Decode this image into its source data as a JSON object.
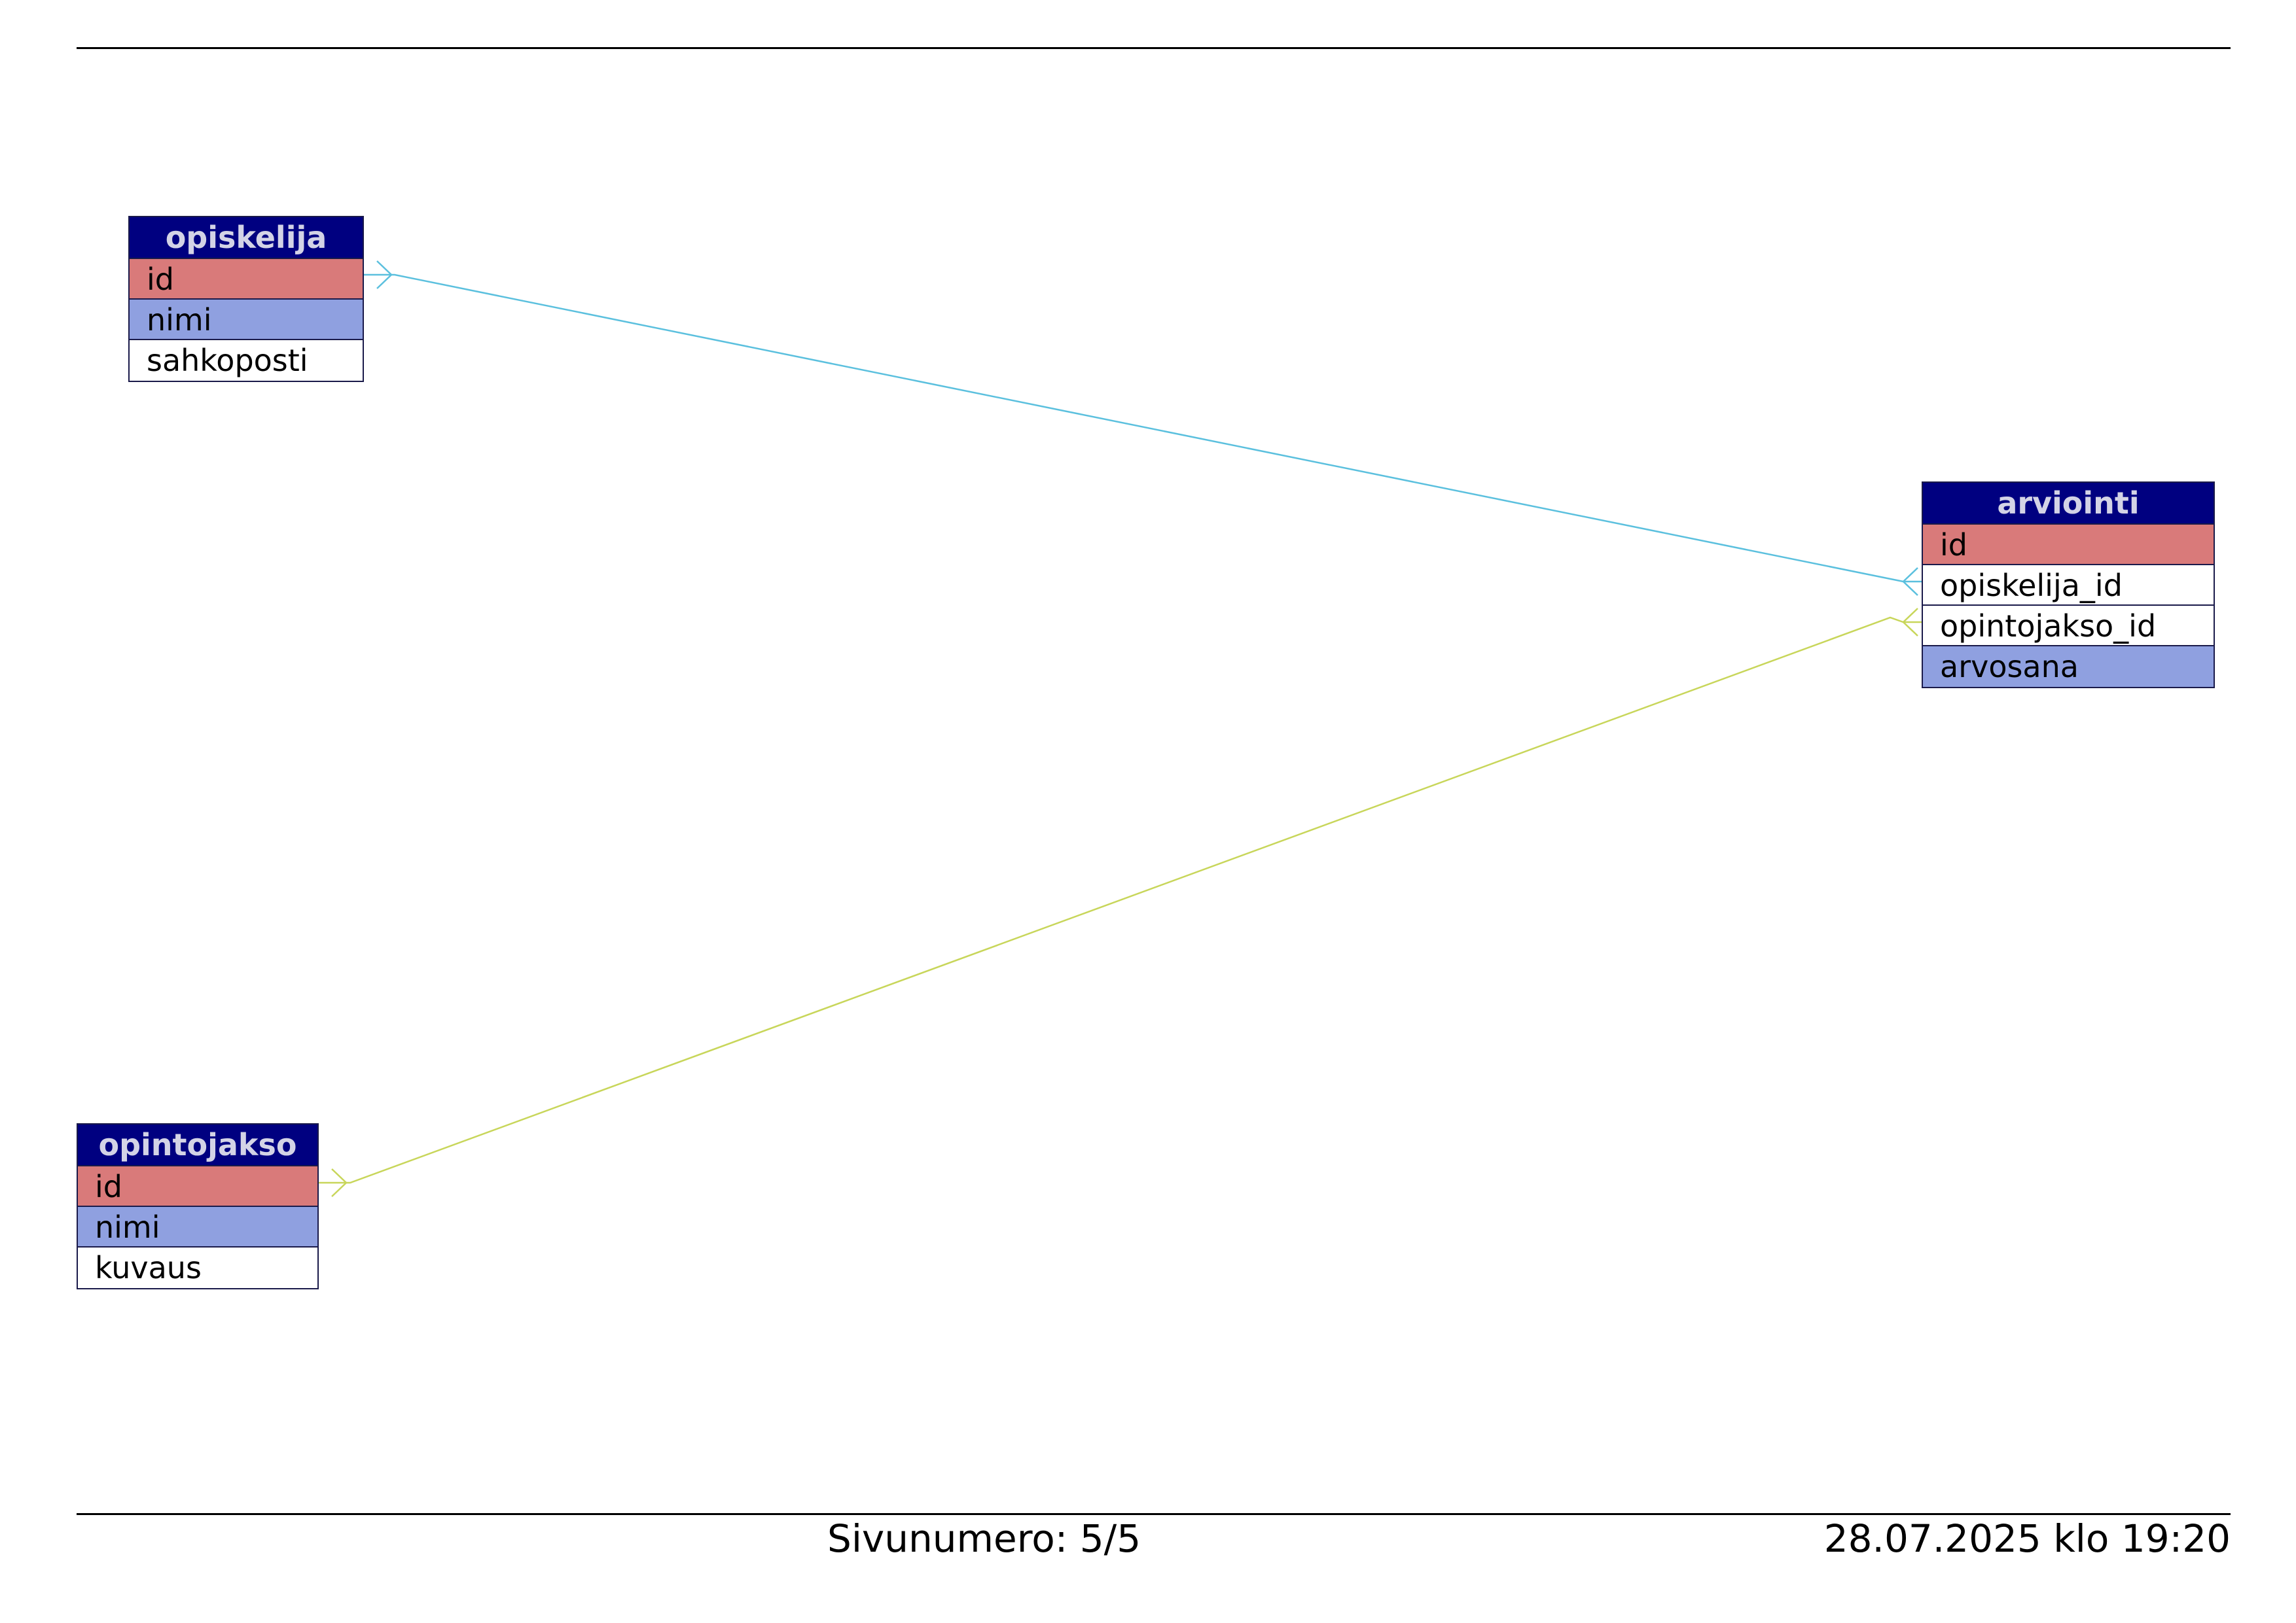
{
  "entities": {
    "opiskelija": {
      "title": "opiskelija",
      "fields": [
        {
          "name": "id",
          "kind": "primary-key"
        },
        {
          "name": "nimi",
          "kind": "required"
        },
        {
          "name": "sahkoposti",
          "kind": "plain"
        }
      ]
    },
    "arviointi": {
      "title": "arviointi",
      "fields": [
        {
          "name": "id",
          "kind": "primary-key"
        },
        {
          "name": "opiskelija_id",
          "kind": "plain"
        },
        {
          "name": "opintojakso_id",
          "kind": "plain"
        },
        {
          "name": "arvosana",
          "kind": "required"
        }
      ]
    },
    "opintojakso": {
      "title": "opintojakso",
      "fields": [
        {
          "name": "id",
          "kind": "primary-key"
        },
        {
          "name": "nimi",
          "kind": "required"
        },
        {
          "name": "kuvaus",
          "kind": "plain"
        }
      ]
    }
  },
  "relationships": [
    {
      "from": "arviointi.opiskelija_id",
      "to": "opiskelija.id",
      "color": "#5bc0de"
    },
    {
      "from": "arviointi.opintojakso_id",
      "to": "opintojakso.id",
      "color": "#c8d65a"
    }
  ],
  "colors": {
    "header_bg": "#000080",
    "header_text": "#d3d3e6",
    "primary_key_bg": "#d97a7a",
    "required_bg": "#8fa0e0",
    "plain_bg": "#ffffff"
  },
  "footer": {
    "page_number": "Sivunumero: 5/5",
    "timestamp": "28.07.2025 klo 19:20"
  }
}
